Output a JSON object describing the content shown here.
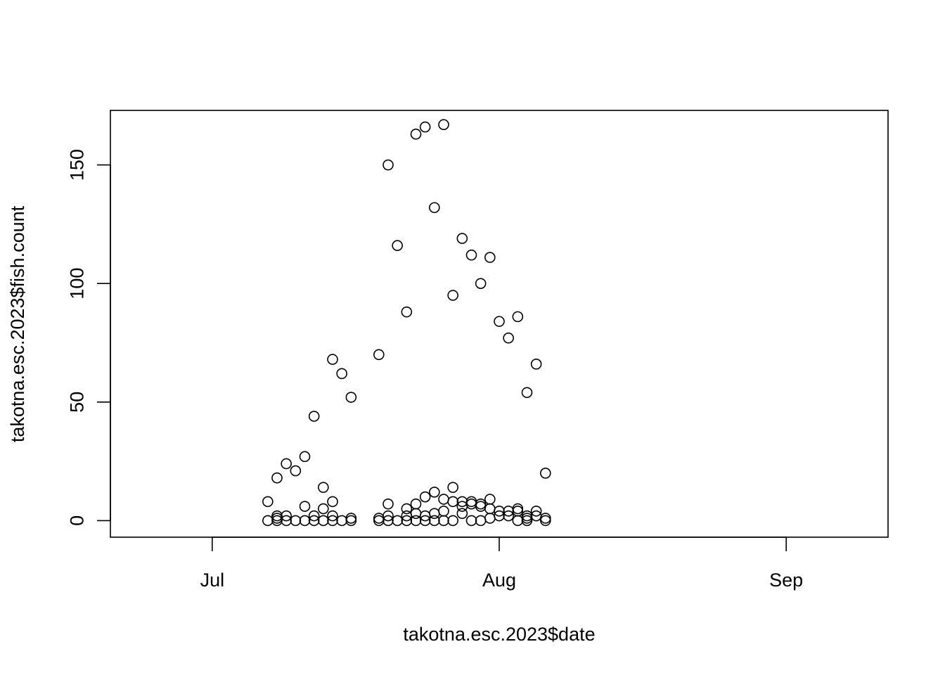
{
  "chart_data": {
    "type": "scatter",
    "title": "",
    "xlabel": "takotna.esc.2023$date",
    "ylabel": "takotna.esc.2023$fish.count",
    "x_axis": {
      "kind": "date",
      "ticks": [
        {
          "date": "2023-07-01",
          "label": "Jul"
        },
        {
          "date": "2023-08-01",
          "label": "Aug"
        },
        {
          "date": "2023-09-01",
          "label": "Sep"
        }
      ],
      "range": [
        "2023-06-20",
        "2023-09-12"
      ]
    },
    "y_axis": {
      "ticks": [
        0,
        50,
        100,
        150
      ],
      "range": [
        -7,
        173
      ]
    },
    "grid": false,
    "legend": "none",
    "points": [
      {
        "x": "2023-07-07",
        "y": 8
      },
      {
        "x": "2023-07-07",
        "y": 0
      },
      {
        "x": "2023-07-08",
        "y": 18
      },
      {
        "x": "2023-07-08",
        "y": 2
      },
      {
        "x": "2023-07-08",
        "y": 1
      },
      {
        "x": "2023-07-08",
        "y": 0
      },
      {
        "x": "2023-07-09",
        "y": 24
      },
      {
        "x": "2023-07-09",
        "y": 2
      },
      {
        "x": "2023-07-09",
        "y": 0
      },
      {
        "x": "2023-07-10",
        "y": 21
      },
      {
        "x": "2023-07-10",
        "y": 0
      },
      {
        "x": "2023-07-11",
        "y": 27
      },
      {
        "x": "2023-07-11",
        "y": 6
      },
      {
        "x": "2023-07-11",
        "y": 0
      },
      {
        "x": "2023-07-12",
        "y": 44
      },
      {
        "x": "2023-07-12",
        "y": 2
      },
      {
        "x": "2023-07-12",
        "y": 0
      },
      {
        "x": "2023-07-13",
        "y": 14
      },
      {
        "x": "2023-07-13",
        "y": 5
      },
      {
        "x": "2023-07-13",
        "y": 0
      },
      {
        "x": "2023-07-14",
        "y": 68
      },
      {
        "x": "2023-07-14",
        "y": 8
      },
      {
        "x": "2023-07-14",
        "y": 2
      },
      {
        "x": "2023-07-14",
        "y": 0
      },
      {
        "x": "2023-07-15",
        "y": 62
      },
      {
        "x": "2023-07-15",
        "y": 0
      },
      {
        "x": "2023-07-16",
        "y": 52
      },
      {
        "x": "2023-07-16",
        "y": 1
      },
      {
        "x": "2023-07-16",
        "y": 0
      },
      {
        "x": "2023-07-19",
        "y": 70
      },
      {
        "x": "2023-07-19",
        "y": 1
      },
      {
        "x": "2023-07-19",
        "y": 0
      },
      {
        "x": "2023-07-20",
        "y": 150
      },
      {
        "x": "2023-07-20",
        "y": 7
      },
      {
        "x": "2023-07-20",
        "y": 2
      },
      {
        "x": "2023-07-20",
        "y": 0
      },
      {
        "x": "2023-07-21",
        "y": 116
      },
      {
        "x": "2023-07-21",
        "y": 0
      },
      {
        "x": "2023-07-22",
        "y": 88
      },
      {
        "x": "2023-07-22",
        "y": 5
      },
      {
        "x": "2023-07-22",
        "y": 2
      },
      {
        "x": "2023-07-22",
        "y": 0
      },
      {
        "x": "2023-07-23",
        "y": 163
      },
      {
        "x": "2023-07-23",
        "y": 7
      },
      {
        "x": "2023-07-23",
        "y": 3
      },
      {
        "x": "2023-07-23",
        "y": 0
      },
      {
        "x": "2023-07-24",
        "y": 166
      },
      {
        "x": "2023-07-24",
        "y": 10
      },
      {
        "x": "2023-07-24",
        "y": 2
      },
      {
        "x": "2023-07-24",
        "y": 0
      },
      {
        "x": "2023-07-25",
        "y": 132
      },
      {
        "x": "2023-07-25",
        "y": 12
      },
      {
        "x": "2023-07-25",
        "y": 3
      },
      {
        "x": "2023-07-25",
        "y": 0
      },
      {
        "x": "2023-07-26",
        "y": 167
      },
      {
        "x": "2023-07-26",
        "y": 9
      },
      {
        "x": "2023-07-26",
        "y": 4
      },
      {
        "x": "2023-07-26",
        "y": 0
      },
      {
        "x": "2023-07-27",
        "y": 95
      },
      {
        "x": "2023-07-27",
        "y": 14
      },
      {
        "x": "2023-07-27",
        "y": 8
      },
      {
        "x": "2023-07-27",
        "y": 0
      },
      {
        "x": "2023-07-28",
        "y": 119
      },
      {
        "x": "2023-07-28",
        "y": 8
      },
      {
        "x": "2023-07-28",
        "y": 6
      },
      {
        "x": "2023-07-28",
        "y": 3
      },
      {
        "x": "2023-07-29",
        "y": 112
      },
      {
        "x": "2023-07-29",
        "y": 8
      },
      {
        "x": "2023-07-29",
        "y": 7
      },
      {
        "x": "2023-07-29",
        "y": 0
      },
      {
        "x": "2023-07-30",
        "y": 100
      },
      {
        "x": "2023-07-30",
        "y": 7
      },
      {
        "x": "2023-07-30",
        "y": 6
      },
      {
        "x": "2023-07-30",
        "y": 0
      },
      {
        "x": "2023-07-31",
        "y": 111
      },
      {
        "x": "2023-07-31",
        "y": 9
      },
      {
        "x": "2023-07-31",
        "y": 5
      },
      {
        "x": "2023-07-31",
        "y": 1
      },
      {
        "x": "2023-08-01",
        "y": 84
      },
      {
        "x": "2023-08-01",
        "y": 4
      },
      {
        "x": "2023-08-01",
        "y": 2
      },
      {
        "x": "2023-08-02",
        "y": 77
      },
      {
        "x": "2023-08-02",
        "y": 4
      },
      {
        "x": "2023-08-02",
        "y": 2
      },
      {
        "x": "2023-08-03",
        "y": 86
      },
      {
        "x": "2023-08-03",
        "y": 5
      },
      {
        "x": "2023-08-03",
        "y": 4
      },
      {
        "x": "2023-08-03",
        "y": 0
      },
      {
        "x": "2023-08-04",
        "y": 54
      },
      {
        "x": "2023-08-04",
        "y": 2
      },
      {
        "x": "2023-08-04",
        "y": 1
      },
      {
        "x": "2023-08-04",
        "y": 0
      },
      {
        "x": "2023-08-05",
        "y": 66
      },
      {
        "x": "2023-08-05",
        "y": 4
      },
      {
        "x": "2023-08-05",
        "y": 2
      },
      {
        "x": "2023-08-06",
        "y": 20
      },
      {
        "x": "2023-08-06",
        "y": 1
      },
      {
        "x": "2023-08-06",
        "y": 0
      }
    ]
  }
}
